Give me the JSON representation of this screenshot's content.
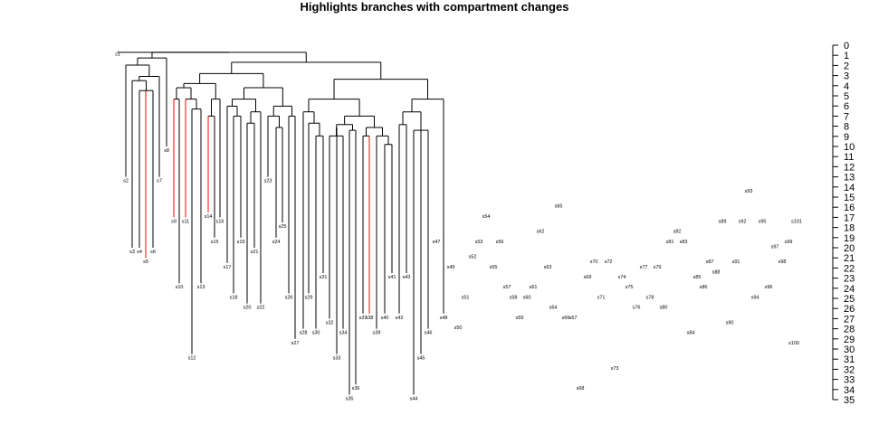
{
  "chart_data": {
    "type": "tree",
    "title": "Highlights branches with compartment changes",
    "y_axis": {
      "ticks": [
        0,
        1,
        2,
        3,
        4,
        5,
        6,
        7,
        8,
        9,
        10,
        11,
        12,
        13,
        14,
        15,
        16,
        17,
        18,
        19,
        20,
        21,
        22,
        23,
        24,
        25,
        26,
        27,
        28,
        29,
        30,
        31,
        32,
        33,
        34,
        35
      ],
      "ylim": [
        0,
        35
      ],
      "inverted": true,
      "side": "right"
    },
    "colors": {
      "normal": "#000000",
      "changed": "#ff0000",
      "root": "#bebebe"
    },
    "tips": [
      {
        "label": "s1",
        "depth": 0.5
      },
      {
        "label": "s2",
        "depth": 13
      },
      {
        "label": "s3",
        "depth": 20
      },
      {
        "label": "s4",
        "depth": 20
      },
      {
        "label": "s5",
        "depth": 21
      },
      {
        "label": "s6",
        "depth": 20
      },
      {
        "label": "s7",
        "depth": 13
      },
      {
        "label": "s8",
        "depth": 10
      },
      {
        "label": "s9",
        "depth": 17
      },
      {
        "label": "s10",
        "depth": 23.5
      },
      {
        "label": "s11",
        "depth": 17
      },
      {
        "label": "s12",
        "depth": 30.5
      },
      {
        "label": "s13",
        "depth": 23.5
      },
      {
        "label": "s14",
        "depth": 16.5
      },
      {
        "label": "s15",
        "depth": 19
      },
      {
        "label": "s16",
        "depth": 17
      },
      {
        "label": "s17",
        "depth": 21.5
      },
      {
        "label": "s18",
        "depth": 24.5
      },
      {
        "label": "s19",
        "depth": 19
      },
      {
        "label": "s20",
        "depth": 25.5
      },
      {
        "label": "s21",
        "depth": 20
      },
      {
        "label": "s22",
        "depth": 25.5
      },
      {
        "label": "s23",
        "depth": 13
      },
      {
        "label": "s24",
        "depth": 19
      },
      {
        "label": "s25",
        "depth": 17.5
      },
      {
        "label": "s26",
        "depth": 24.5
      },
      {
        "label": "s27",
        "depth": 29
      },
      {
        "label": "s28",
        "depth": 28
      },
      {
        "label": "s29",
        "depth": 24.5
      },
      {
        "label": "s30",
        "depth": 28
      },
      {
        "label": "s31",
        "depth": 22.5
      },
      {
        "label": "s32",
        "depth": 27
      },
      {
        "label": "s33",
        "depth": 30.5
      },
      {
        "label": "s34",
        "depth": 28
      },
      {
        "label": "s35",
        "depth": 34.5
      },
      {
        "label": "s36",
        "depth": 33.5
      },
      {
        "label": "s37",
        "depth": 26.5
      },
      {
        "label": "s38",
        "depth": 26.5
      },
      {
        "label": "s39",
        "depth": 28
      },
      {
        "label": "s40",
        "depth": 26.5
      },
      {
        "label": "s41",
        "depth": 22.5
      },
      {
        "label": "s42",
        "depth": 26.5
      },
      {
        "label": "s43",
        "depth": 22.5
      },
      {
        "label": "s44",
        "depth": 34.5
      },
      {
        "label": "s45",
        "depth": 30.5
      },
      {
        "label": "s46",
        "depth": 28
      },
      {
        "label": "s47",
        "depth": 19
      },
      {
        "label": "s48",
        "depth": 26.5
      },
      {
        "label": "s49",
        "depth": 21.5
      },
      {
        "label": "s50",
        "depth": 27.5
      },
      {
        "label": "s51",
        "depth": 24.5
      },
      {
        "label": "s52",
        "depth": 20.5
      },
      {
        "label": "s53",
        "depth": 19
      },
      {
        "label": "s54",
        "depth": 16.5
      },
      {
        "label": "s55",
        "depth": 21.5
      },
      {
        "label": "s56",
        "depth": 19
      },
      {
        "label": "s57",
        "depth": 23.5
      },
      {
        "label": "s58",
        "depth": 24.5
      },
      {
        "label": "s59",
        "depth": 26.5
      },
      {
        "label": "s60",
        "depth": 24.5
      },
      {
        "label": "s61",
        "depth": 23.5
      },
      {
        "label": "s62",
        "depth": 18
      },
      {
        "label": "s63",
        "depth": 21.5
      },
      {
        "label": "s64",
        "depth": 25.5
      },
      {
        "label": "s65",
        "depth": 15.5
      },
      {
        "label": "s66",
        "depth": 26.5
      },
      {
        "label": "s67",
        "depth": 26.5
      },
      {
        "label": "s68",
        "depth": 33.5
      },
      {
        "label": "s69",
        "depth": 22.5
      },
      {
        "label": "s70",
        "depth": 21
      },
      {
        "label": "s71",
        "depth": 24.5
      },
      {
        "label": "s72",
        "depth": 21
      },
      {
        "label": "s73",
        "depth": 31.5
      },
      {
        "label": "s74",
        "depth": 22.5
      },
      {
        "label": "s75",
        "depth": 23.5
      },
      {
        "label": "s76",
        "depth": 25.5
      },
      {
        "label": "s77",
        "depth": 21.5
      },
      {
        "label": "s78",
        "depth": 24.5
      },
      {
        "label": "s79",
        "depth": 21.5
      },
      {
        "label": "s80",
        "depth": 25.5
      },
      {
        "label": "s81",
        "depth": 19
      },
      {
        "label": "s82",
        "depth": 18
      },
      {
        "label": "s83",
        "depth": 19
      },
      {
        "label": "s84",
        "depth": 28
      },
      {
        "label": "s85",
        "depth": 22.5
      },
      {
        "label": "s86",
        "depth": 23.5
      },
      {
        "label": "s87",
        "depth": 21
      },
      {
        "label": "s88",
        "depth": 22
      },
      {
        "label": "s89",
        "depth": 17
      },
      {
        "label": "s90",
        "depth": 27
      },
      {
        "label": "s91",
        "depth": 21
      },
      {
        "label": "s92",
        "depth": 17
      },
      {
        "label": "s93",
        "depth": 14
      },
      {
        "label": "s94",
        "depth": 24.5
      },
      {
        "label": "s95",
        "depth": 17
      },
      {
        "label": "s96",
        "depth": 23.5
      },
      {
        "label": "s97",
        "depth": 19.5
      },
      {
        "label": "s98",
        "depth": 21
      },
      {
        "label": "s99",
        "depth": 19
      },
      {
        "label": "s100",
        "depth": 29
      },
      {
        "label": "s101",
        "depth": 17
      }
    ],
    "clades": [
      {
        "name": "A",
        "depth": 5,
        "children": [
          "s1",
          "B"
        ]
      },
      {
        "name": "B",
        "depth": 5,
        "children": [
          "C",
          "D"
        ]
      },
      {
        "name": "C",
        "depth": 9,
        "children": [
          "C1",
          "s8"
        ]
      },
      {
        "name": "C1",
        "depth": 14,
        "children": [
          "s2",
          "C2"
        ]
      },
      {
        "name": "C2",
        "depth": 22,
        "children": [
          "C3",
          "s7"
        ]
      },
      {
        "name": "C3",
        "depth": 25,
        "children": [
          "s3",
          "C4"
        ]
      },
      {
        "name": "C4",
        "depth": 32,
        "children": [
          "s4",
          "s5",
          "s6"
        ]
      },
      {
        "name": "D",
        "depth": 12,
        "children": [
          "E",
          "F"
        ]
      },
      {
        "name": "E",
        "depth": 20,
        "children": [
          "E1",
          "M"
        ]
      },
      {
        "name": "E1",
        "depth": 27,
        "children": [
          "E2",
          "P"
        ]
      },
      {
        "name": "E2",
        "depth": 30,
        "children": [
          "E3",
          "E4"
        ]
      },
      {
        "name": "E3",
        "depth": 38,
        "children": [
          "s9",
          "s10"
        ]
      },
      {
        "name": "E4",
        "depth": 38,
        "children": [
          "s11",
          "E5"
        ]
      },
      {
        "name": "E5",
        "depth": 45,
        "children": [
          "s12",
          "s13"
        ]
      },
      {
        "name": "P",
        "depth": 38,
        "children": [
          "P1",
          "s16"
        ]
      },
      {
        "name": "P1",
        "depth": 50,
        "children": [
          "s14",
          "s15"
        ]
      },
      {
        "name": "M",
        "depth": 30,
        "children": [
          "M1",
          "M2"
        ]
      },
      {
        "name": "M1",
        "depth": 38,
        "children": [
          "M3",
          "M4"
        ]
      },
      {
        "name": "M3",
        "depth": 43,
        "children": [
          "s17",
          "M5"
        ]
      },
      {
        "name": "M5",
        "depth": 50,
        "children": [
          "s18",
          "s19"
        ]
      },
      {
        "name": "M4",
        "depth": 47,
        "children": [
          "M6",
          "s22"
        ]
      },
      {
        "name": "M6",
        "depth": 55,
        "children": [
          "s20",
          "s21"
        ]
      },
      {
        "name": "M2",
        "depth": 43,
        "children": [
          "M7",
          "M8"
        ]
      },
      {
        "name": "M7",
        "depth": 50,
        "children": [
          "s23",
          "M9"
        ]
      },
      {
        "name": "M9",
        "depth": 58,
        "children": [
          "s24",
          "s25"
        ]
      },
      {
        "name": "M8",
        "depth": 50,
        "children": [
          "s26",
          "s27"
        ]
      },
      {
        "name": "F",
        "depth": 24,
        "children": [
          "G",
          "H"
        ]
      },
      {
        "name": "G",
        "depth": 38,
        "children": [
          "G1",
          "G2"
        ]
      },
      {
        "name": "G1",
        "depth": 47,
        "children": [
          "s28",
          "G3"
        ]
      },
      {
        "name": "G3",
        "depth": 55,
        "children": [
          "s29",
          "G4"
        ]
      },
      {
        "name": "G4",
        "depth": 64,
        "children": [
          "s30",
          "s31"
        ]
      },
      {
        "name": "G2",
        "depth": 50,
        "children": [
          "G5",
          "G6"
        ]
      },
      {
        "name": "G5",
        "depth": 56,
        "children": [
          "G7",
          "G8"
        ]
      },
      {
        "name": "G7",
        "depth": 58,
        "children": [
          "G9",
          "s33"
        ]
      },
      {
        "name": "G9",
        "depth": 64,
        "children": [
          "s32",
          "s34"
        ]
      },
      {
        "name": "G8",
        "depth": 60,
        "children": [
          "s35",
          "s36"
        ]
      },
      {
        "name": "G6",
        "depth": 58,
        "children": [
          "G10",
          "G11"
        ]
      },
      {
        "name": "G10",
        "depth": 64,
        "children": [
          "s37",
          "s38"
        ]
      },
      {
        "name": "G11",
        "depth": 64,
        "children": [
          "G12",
          "s39"
        ]
      },
      {
        "name": "G12",
        "depth": 70,
        "children": [
          "s40",
          "s41"
        ]
      },
      {
        "name": "H",
        "depth": 38,
        "children": [
          "H1",
          "s48"
        ]
      },
      {
        "name": "H1",
        "depth": 47,
        "children": [
          "H2",
          "H3"
        ]
      },
      {
        "name": "H2",
        "depth": 56,
        "children": [
          "s42",
          "s43"
        ]
      },
      {
        "name": "H3",
        "depth": 60,
        "children": [
          "s44",
          "s45",
          "s46"
        ]
      },
      {
        "name": "I",
        "depth": 31,
        "children": [
          "J",
          "K"
        ]
      },
      {
        "name": "J",
        "depth": 38,
        "children": [
          "J1",
          "J2"
        ]
      },
      {
        "name": "J1",
        "depth": 47,
        "children": [
          "s49",
          "J3"
        ]
      },
      {
        "name": "J3",
        "depth": 55,
        "children": [
          "s50",
          "s51"
        ]
      },
      {
        "name": "J2",
        "depth": 50,
        "children": [
          "s52",
          "s53"
        ]
      },
      {
        "name": "K",
        "depth": 40,
        "children": [
          "L",
          "N"
        ]
      },
      {
        "name": "L",
        "depth": 47,
        "children": [
          "L1",
          "L2"
        ]
      },
      {
        "name": "L1",
        "depth": 55,
        "children": [
          "s54",
          "L3"
        ]
      },
      {
        "name": "L3",
        "depth": 62,
        "children": [
          "s55",
          "s56"
        ]
      },
      {
        "name": "L2",
        "depth": 55,
        "children": [
          "L4",
          "L5"
        ]
      },
      {
        "name": "L4",
        "depth": 64,
        "children": [
          "L6",
          "s62"
        ]
      },
      {
        "name": "L6",
        "depth": 72,
        "children": [
          "s57",
          "L7"
        ]
      },
      {
        "name": "L7",
        "depth": 78,
        "children": [
          "s58",
          "s59"
        ]
      },
      {
        "name": "L5",
        "depth": 64,
        "children": [
          "s60",
          "s61",
          "s63",
          "s64"
        ]
      },
      {
        "name": "N",
        "depth": 47,
        "children": [
          "N1",
          "N2"
        ]
      },
      {
        "name": "N1",
        "depth": 55,
        "children": [
          "s65",
          "s66"
        ]
      },
      {
        "name": "N2",
        "depth": 55,
        "children": [
          "s67",
          "s68"
        ]
      },
      {
        "name": "O",
        "depth": 38,
        "children": [
          "O1",
          "O2"
        ]
      },
      {
        "name": "O1",
        "depth": 47,
        "children": [
          "O3",
          "O4"
        ]
      },
      {
        "name": "O3",
        "depth": 55,
        "children": [
          "s69",
          "s70"
        ]
      },
      {
        "name": "O4",
        "depth": 55,
        "children": [
          "s71",
          "s72"
        ]
      },
      {
        "name": "O2",
        "depth": 50,
        "children": [
          "O5",
          "O6"
        ]
      },
      {
        "name": "O5",
        "depth": 56,
        "children": [
          "s73",
          "s74"
        ]
      },
      {
        "name": "O6",
        "depth": 58,
        "children": [
          "s75",
          "s76",
          "s77"
        ]
      },
      {
        "name": "Q",
        "depth": 40,
        "children": [
          "Q1",
          "Q2"
        ]
      },
      {
        "name": "Q1",
        "depth": 47,
        "children": [
          "s78",
          "Q3"
        ]
      },
      {
        "name": "Q3",
        "depth": 55,
        "children": [
          "s79",
          "s80"
        ]
      },
      {
        "name": "Q2",
        "depth": 50,
        "children": [
          "s81",
          "s82",
          "s83"
        ]
      },
      {
        "name": "R",
        "depth": 47,
        "children": [
          "R1",
          "R2"
        ]
      },
      {
        "name": "R1",
        "depth": 55,
        "children": [
          "s84",
          "s85",
          "s86"
        ]
      },
      {
        "name": "R2",
        "depth": 55,
        "children": [
          "s87",
          "s88"
        ]
      },
      {
        "name": "S",
        "depth": 47,
        "children": [
          "S1",
          "s93"
        ]
      },
      {
        "name": "S1",
        "depth": 55,
        "children": [
          "s89",
          "s90"
        ]
      },
      {
        "name": "S2",
        "depth": 55,
        "children": [
          "s91",
          "s92"
        ]
      },
      {
        "name": "T",
        "depth": 55,
        "children": [
          "T1",
          "T2"
        ]
      },
      {
        "name": "T1",
        "depth": 64,
        "children": [
          "s94",
          "s95"
        ]
      },
      {
        "name": "T2",
        "depth": 64,
        "children": [
          "s96",
          "s97",
          "s98",
          "s99",
          "s100",
          "s101"
        ]
      }
    ],
    "highlighted_tips": [
      "s5",
      "s9",
      "s11",
      "s14",
      "s38",
      "s54",
      "s80",
      "s82",
      "s90",
      "s97"
    ]
  }
}
